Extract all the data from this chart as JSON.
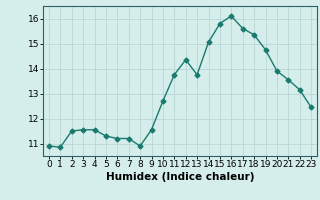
{
  "x": [
    0,
    1,
    2,
    3,
    4,
    5,
    6,
    7,
    8,
    9,
    10,
    11,
    12,
    13,
    14,
    15,
    16,
    17,
    18,
    19,
    20,
    21,
    22,
    23
  ],
  "y": [
    10.9,
    10.85,
    11.5,
    11.55,
    11.55,
    11.3,
    11.2,
    11.2,
    10.9,
    11.55,
    12.7,
    13.75,
    14.35,
    13.75,
    15.05,
    15.8,
    16.1,
    15.6,
    15.35,
    14.75,
    13.9,
    13.55,
    13.15,
    12.45
  ],
  "line_color": "#1a7a6e",
  "marker": "D",
  "marker_size": 2.5,
  "bg_color": "#d5eeec",
  "grid_color": "#b8d8d5",
  "xlabel": "Humidex (Indice chaleur)",
  "xlim": [
    -0.5,
    23.5
  ],
  "ylim": [
    10.5,
    16.5
  ],
  "yticks": [
    11,
    12,
    13,
    14,
    15,
    16
  ],
  "xticks": [
    0,
    1,
    2,
    3,
    4,
    5,
    6,
    7,
    8,
    9,
    10,
    11,
    12,
    13,
    14,
    15,
    16,
    17,
    18,
    19,
    20,
    21,
    22,
    23
  ],
  "xlabel_fontsize": 7.5,
  "tick_fontsize": 6.5,
  "line_width": 1.0
}
